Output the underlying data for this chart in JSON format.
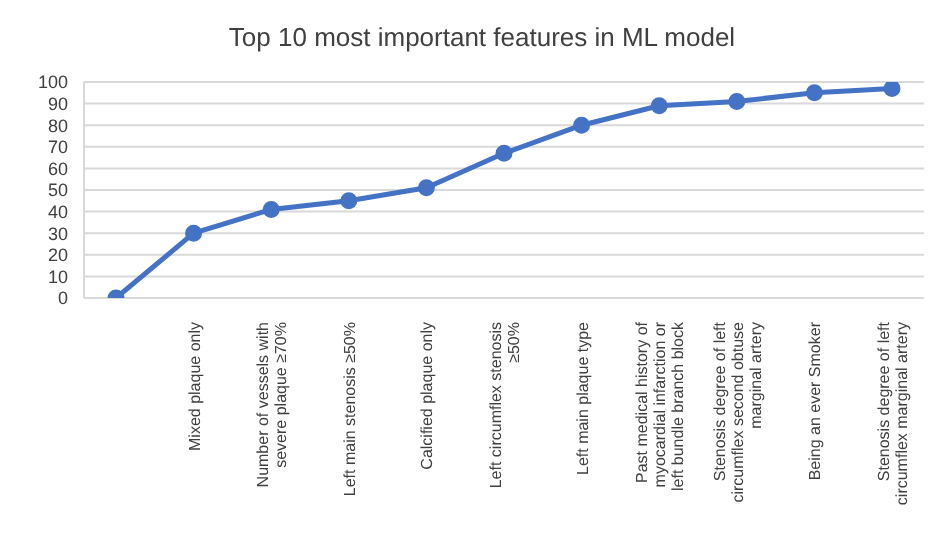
{
  "chart_data": {
    "type": "line",
    "title": "Top 10 most important features in ML model",
    "categories": [
      null,
      "Mixed plaque only",
      "Number of vessels with severe plaque ≥70%",
      "Left main stenosis ≥50%",
      "Calcified plaque only",
      "Left circumflex stenosis ≥50%",
      "Left main plaque type",
      "Past medical history of myocardial infarction or left bundle branch block",
      "Stenosis degree of left circumflex second obtuse marginal artery",
      "Being an ever Smoker",
      "Stenosis degree of left circumflex marginal artery"
    ],
    "series": [
      {
        "color": "#4472c4",
        "values": [
          0,
          30,
          41,
          45,
          51,
          67,
          80,
          89,
          91,
          95,
          97
        ]
      }
    ],
    "ylim": [
      0,
      100
    ],
    "yticks": [
      0,
      10,
      20,
      30,
      40,
      50,
      60,
      70,
      80,
      90,
      100
    ],
    "grid": "y",
    "legend": false,
    "marker": "circle",
    "line_style": "solid"
  }
}
